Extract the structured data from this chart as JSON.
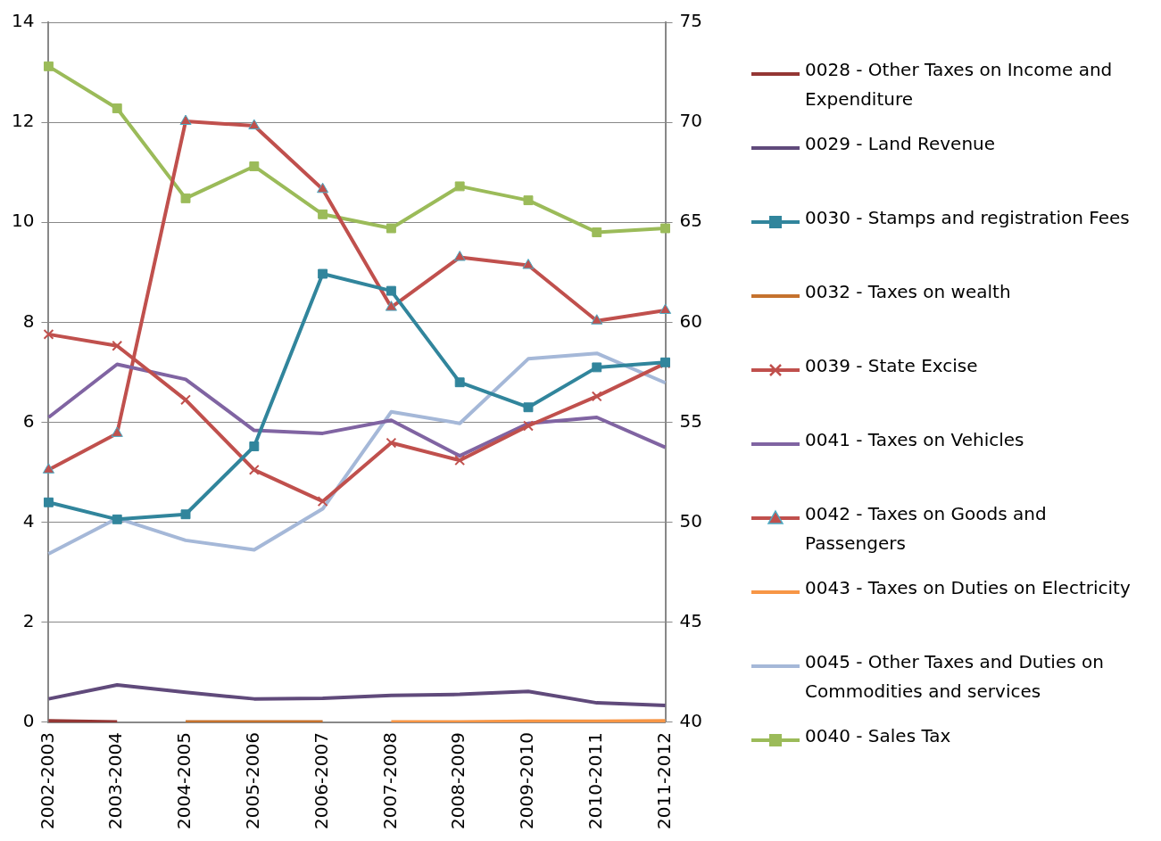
{
  "chart_data": {
    "type": "line",
    "categories": [
      "2002-2003",
      "2003-2004",
      "2004-2005",
      "2005-2006",
      "2006-2007",
      "2007-2008",
      "2008-2009",
      "2009-2010",
      "2010-2011",
      "2011-2012"
    ],
    "ylim": [
      0,
      14
    ],
    "yticks": [
      0,
      2,
      4,
      6,
      8,
      10,
      12,
      14
    ],
    "y2lim": [
      40,
      75
    ],
    "y2ticks": [
      40,
      45,
      50,
      55,
      60,
      65,
      70,
      75
    ],
    "grid": "y",
    "legend": "right",
    "series": [
      {
        "name": "0028 - Other Taxes on Income and Expenditure",
        "color": "#943634",
        "marker": "none",
        "values": [
          0.03,
          0.01,
          null,
          null,
          null,
          null,
          null,
          null,
          null,
          null
        ]
      },
      {
        "name": "0029 - Land Revenue",
        "color": "#604a7b",
        "marker": "none",
        "values": [
          0.47,
          0.75,
          0.6,
          0.47,
          0.48,
          0.54,
          0.56,
          0.62,
          0.39,
          0.34
        ]
      },
      {
        "name": "0030 - Stamps and registration Fees",
        "color": "#31859c",
        "marker": "square",
        "values": [
          4.4,
          4.06,
          4.16,
          5.52,
          8.97,
          8.63,
          6.8,
          6.3,
          7.1,
          7.2
        ]
      },
      {
        "name": "0032 - Taxes on wealth",
        "color": "#c5722e",
        "marker": "none",
        "values": [
          null,
          null,
          0.01,
          0.01,
          0.01,
          null,
          null,
          null,
          null,
          null
        ]
      },
      {
        "name": "0039 - State Excise",
        "color": "#c0504d",
        "marker": "cross",
        "values": [
          7.76,
          7.53,
          6.45,
          5.05,
          4.42,
          5.59,
          5.24,
          5.93,
          6.52,
          7.18
        ]
      },
      {
        "name": "0041 - Taxes on Vehicles",
        "color": "#8064a2",
        "marker": "none",
        "values": [
          6.1,
          7.16,
          6.86,
          5.84,
          5.78,
          6.04,
          5.33,
          5.98,
          6.1,
          5.5
        ]
      },
      {
        "name": "0042 - Taxes on Goods and Passengers",
        "color": "#c0504d",
        "marker": "triangle",
        "values": [
          5.05,
          5.78,
          12.02,
          11.93,
          10.66,
          8.3,
          9.3,
          9.14,
          8.03,
          8.24
        ]
      },
      {
        "name": "0043 - Taxes on Duties on Electricity",
        "color": "#f79646",
        "marker": "none",
        "values": [
          null,
          null,
          null,
          null,
          null,
          0.01,
          0.01,
          0.02,
          0.02,
          0.03
        ]
      },
      {
        "name": "0045 - Other Taxes and Duties on Commodities and services",
        "color": "#a5b8d8",
        "marker": "none",
        "values": [
          3.37,
          4.08,
          3.64,
          3.45,
          4.27,
          6.21,
          5.98,
          7.27,
          7.38,
          6.79
        ]
      },
      {
        "name": "0040 - Sales Tax",
        "color": "#9bbb59",
        "marker": "square",
        "axis": "y2",
        "values": [
          72.8,
          70.7,
          66.2,
          67.8,
          65.4,
          64.7,
          66.8,
          66.1,
          64.5,
          64.7
        ]
      }
    ]
  }
}
